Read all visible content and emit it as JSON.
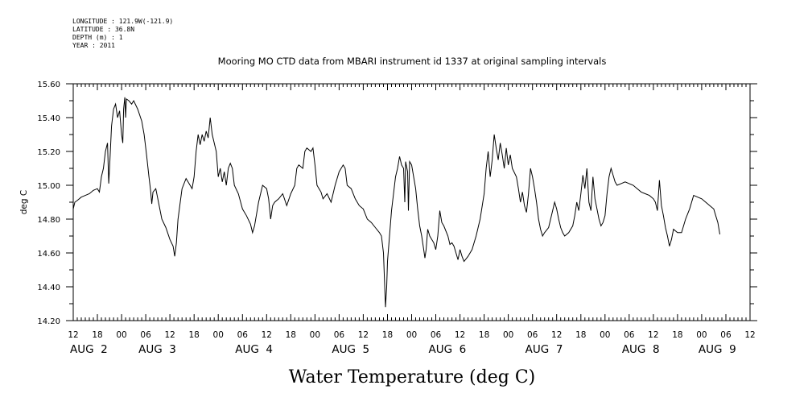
{
  "header": {
    "meta_lines": [
      "LONGITUDE : 121.9W(-121.9)",
      "LATITUDE : 36.8N",
      "DEPTH (m) : 1",
      "YEAR : 2011"
    ]
  },
  "chart_data": {
    "type": "line",
    "title": "Mooring MO CTD data from MBARI instrument id 1337 at original sampling intervals",
    "xlabel": "Water Temperature (deg C)",
    "ylabel": "deg C",
    "ylim": [
      14.2,
      15.6
    ],
    "yticks": [
      "14.20",
      "14.40",
      "14.60",
      "14.80",
      "15.00",
      "15.20",
      "15.40",
      "15.60"
    ],
    "xlim": [
      -12,
      156
    ],
    "x_unit": "hours from 2011-08-02 00:00",
    "xtick_labels": [
      {
        "x": -12,
        "label": "12"
      },
      {
        "x": -6,
        "label": "18"
      },
      {
        "x": 0,
        "label": "00"
      },
      {
        "x": 6,
        "label": "06"
      },
      {
        "x": 12,
        "label": "12"
      },
      {
        "x": 18,
        "label": "18"
      },
      {
        "x": 24,
        "label": "00"
      },
      {
        "x": 30,
        "label": "06"
      },
      {
        "x": 36,
        "label": "12"
      },
      {
        "x": 42,
        "label": "18"
      },
      {
        "x": 48,
        "label": "00"
      },
      {
        "x": 54,
        "label": "06"
      },
      {
        "x": 60,
        "label": "12"
      },
      {
        "x": 66,
        "label": "18"
      },
      {
        "x": 72,
        "label": "00"
      },
      {
        "x": 78,
        "label": "06"
      },
      {
        "x": 84,
        "label": "12"
      },
      {
        "x": 90,
        "label": "18"
      },
      {
        "x": 96,
        "label": "00"
      },
      {
        "x": 102,
        "label": "06"
      },
      {
        "x": 108,
        "label": "12"
      },
      {
        "x": 114,
        "label": "18"
      },
      {
        "x": 120,
        "label": "00"
      },
      {
        "x": 126,
        "label": "06"
      },
      {
        "x": 132,
        "label": "12"
      },
      {
        "x": 138,
        "label": "18"
      },
      {
        "x": 144,
        "label": "00"
      },
      {
        "x": 150,
        "label": "06"
      },
      {
        "x": 156,
        "label": "12"
      }
    ],
    "day_labels": [
      {
        "x": -12,
        "label": "AUG  2"
      },
      {
        "x": 5,
        "label": "AUG  3"
      },
      {
        "x": 29,
        "label": "AUG  4"
      },
      {
        "x": 53,
        "label": "AUG  5"
      },
      {
        "x": 77,
        "label": "AUG  6"
      },
      {
        "x": 101,
        "label": "AUG  7"
      },
      {
        "x": 125,
        "label": "AUG  8"
      },
      {
        "x": 144,
        "label": "AUG  9"
      }
    ],
    "series": [
      {
        "color": "#000000",
        "points": [
          [
            -12,
            14.86
          ],
          [
            -11.6,
            14.9
          ],
          [
            -11,
            14.91
          ],
          [
            -10,
            14.93
          ],
          [
            -9,
            14.94
          ],
          [
            -8,
            14.95
          ],
          [
            -7,
            14.97
          ],
          [
            -6,
            14.98
          ],
          [
            -5.5,
            14.96
          ],
          [
            -5,
            15.05
          ],
          [
            -4.5,
            15.1
          ],
          [
            -4,
            15.2
          ],
          [
            -3.5,
            15.25
          ],
          [
            -3.2,
            15.01
          ],
          [
            -3,
            15.1
          ],
          [
            -2.5,
            15.35
          ],
          [
            -2,
            15.45
          ],
          [
            -1.5,
            15.48
          ],
          [
            -1,
            15.4
          ],
          [
            -0.5,
            15.44
          ],
          [
            0,
            15.3
          ],
          [
            0.3,
            15.25
          ],
          [
            0.5,
            15.45
          ],
          [
            0.8,
            15.52
          ],
          [
            1,
            15.4
          ],
          [
            1.2,
            15.51
          ],
          [
            1.8,
            15.5
          ],
          [
            2.5,
            15.48
          ],
          [
            3,
            15.5
          ],
          [
            4,
            15.45
          ],
          [
            5,
            15.38
          ],
          [
            5.6,
            15.3
          ],
          [
            6.2,
            15.18
          ],
          [
            6.8,
            15.05
          ],
          [
            7.2,
            14.97
          ],
          [
            7.5,
            14.89
          ],
          [
            7.8,
            14.96
          ],
          [
            8.5,
            14.98
          ],
          [
            9,
            14.92
          ],
          [
            9.5,
            14.86
          ],
          [
            10,
            14.8
          ],
          [
            11,
            14.75
          ],
          [
            12,
            14.68
          ],
          [
            12.8,
            14.64
          ],
          [
            13.2,
            14.58
          ],
          [
            13.6,
            14.66
          ],
          [
            14,
            14.8
          ],
          [
            15,
            14.98
          ],
          [
            16,
            15.04
          ],
          [
            17,
            15.0
          ],
          [
            17.5,
            14.98
          ],
          [
            18,
            15.05
          ],
          [
            18.5,
            15.2
          ],
          [
            19,
            15.3
          ],
          [
            19.5,
            15.24
          ],
          [
            20,
            15.3
          ],
          [
            20.5,
            15.26
          ],
          [
            21,
            15.32
          ],
          [
            21.5,
            15.28
          ],
          [
            22,
            15.4
          ],
          [
            22.5,
            15.3
          ],
          [
            23,
            15.25
          ],
          [
            23.5,
            15.2
          ],
          [
            24,
            15.05
          ],
          [
            24.5,
            15.1
          ],
          [
            25,
            15.02
          ],
          [
            25.5,
            15.08
          ],
          [
            26,
            15.0
          ],
          [
            26.5,
            15.1
          ],
          [
            27,
            15.13
          ],
          [
            27.5,
            15.1
          ],
          [
            28,
            15.0
          ],
          [
            29,
            14.95
          ],
          [
            30,
            14.86
          ],
          [
            31,
            14.82
          ],
          [
            32,
            14.77
          ],
          [
            32.5,
            14.72
          ],
          [
            33,
            14.76
          ],
          [
            34,
            14.9
          ],
          [
            35,
            15.0
          ],
          [
            36,
            14.98
          ],
          [
            36.5,
            14.92
          ],
          [
            37,
            14.8
          ],
          [
            37.5,
            14.88
          ],
          [
            38,
            14.9
          ],
          [
            39,
            14.92
          ],
          [
            40,
            14.95
          ],
          [
            41,
            14.88
          ],
          [
            42,
            14.95
          ],
          [
            43,
            15.0
          ],
          [
            43.5,
            15.1
          ],
          [
            44,
            15.12
          ],
          [
            45,
            15.1
          ],
          [
            45.5,
            15.2
          ],
          [
            46,
            15.22
          ],
          [
            47,
            15.2
          ],
          [
            47.5,
            15.22
          ],
          [
            48,
            15.12
          ],
          [
            48.5,
            15.0
          ],
          [
            49,
            14.98
          ],
          [
            49.5,
            14.96
          ],
          [
            50,
            14.92
          ],
          [
            51,
            14.95
          ],
          [
            52,
            14.9
          ],
          [
            53,
            15.0
          ],
          [
            54,
            15.08
          ],
          [
            55,
            15.12
          ],
          [
            55.5,
            15.1
          ],
          [
            56,
            15.0
          ],
          [
            57,
            14.98
          ],
          [
            58,
            14.92
          ],
          [
            59,
            14.88
          ],
          [
            60,
            14.86
          ],
          [
            61,
            14.8
          ],
          [
            62,
            14.78
          ],
          [
            63,
            14.75
          ],
          [
            64,
            14.72
          ],
          [
            64.5,
            14.7
          ],
          [
            65,
            14.6
          ],
          [
            65.5,
            14.28
          ],
          [
            65.8,
            14.4
          ],
          [
            66,
            14.55
          ],
          [
            66.5,
            14.7
          ],
          [
            67,
            14.85
          ],
          [
            67.5,
            14.95
          ],
          [
            68,
            15.05
          ],
          [
            68.5,
            15.1
          ],
          [
            69,
            15.17
          ],
          [
            69.5,
            15.12
          ],
          [
            70,
            15.1
          ],
          [
            70.3,
            14.9
          ],
          [
            70.5,
            15.14
          ],
          [
            71,
            15.08
          ],
          [
            71.2,
            14.85
          ],
          [
            71.5,
            15.14
          ],
          [
            72,
            15.12
          ],
          [
            72.5,
            15.05
          ],
          [
            73,
            14.98
          ],
          [
            73.5,
            14.86
          ],
          [
            74,
            14.76
          ],
          [
            74.5,
            14.7
          ],
          [
            75,
            14.62
          ],
          [
            75.3,
            14.57
          ],
          [
            75.6,
            14.62
          ],
          [
            76,
            14.74
          ],
          [
            76.5,
            14.7
          ],
          [
            77,
            14.68
          ],
          [
            77.5,
            14.66
          ],
          [
            78,
            14.62
          ],
          [
            78.5,
            14.7
          ],
          [
            79,
            14.85
          ],
          [
            79.5,
            14.78
          ],
          [
            80,
            14.76
          ],
          [
            81,
            14.7
          ],
          [
            81.5,
            14.65
          ],
          [
            82,
            14.66
          ],
          [
            82.5,
            14.64
          ],
          [
            83,
            14.6
          ],
          [
            83.5,
            14.56
          ],
          [
            84,
            14.62
          ],
          [
            84.5,
            14.58
          ],
          [
            85,
            14.55
          ],
          [
            86,
            14.58
          ],
          [
            87,
            14.62
          ],
          [
            88,
            14.7
          ],
          [
            89,
            14.8
          ],
          [
            90,
            14.95
          ],
          [
            90.5,
            15.1
          ],
          [
            91,
            15.2
          ],
          [
            91.5,
            15.05
          ],
          [
            92,
            15.15
          ],
          [
            92.5,
            15.3
          ],
          [
            93,
            15.22
          ],
          [
            93.5,
            15.15
          ],
          [
            94,
            15.25
          ],
          [
            94.5,
            15.18
          ],
          [
            95,
            15.1
          ],
          [
            95.5,
            15.22
          ],
          [
            96,
            15.12
          ],
          [
            96.5,
            15.18
          ],
          [
            97,
            15.1
          ],
          [
            98,
            15.05
          ],
          [
            98.5,
            14.98
          ],
          [
            99,
            14.9
          ],
          [
            99.5,
            14.96
          ],
          [
            100,
            14.88
          ],
          [
            100.5,
            14.84
          ],
          [
            101,
            14.95
          ],
          [
            101.5,
            15.1
          ],
          [
            102,
            15.05
          ],
          [
            102.5,
            14.98
          ],
          [
            103,
            14.9
          ],
          [
            103.5,
            14.8
          ],
          [
            104,
            14.74
          ],
          [
            104.5,
            14.7
          ],
          [
            105,
            14.72
          ],
          [
            106,
            14.75
          ],
          [
            106.5,
            14.8
          ],
          [
            107,
            14.85
          ],
          [
            107.5,
            14.9
          ],
          [
            108,
            14.86
          ],
          [
            108.5,
            14.8
          ],
          [
            109,
            14.75
          ],
          [
            109.5,
            14.72
          ],
          [
            110,
            14.7
          ],
          [
            111,
            14.72
          ],
          [
            112,
            14.76
          ],
          [
            112.5,
            14.82
          ],
          [
            113,
            14.9
          ],
          [
            113.5,
            14.85
          ],
          [
            114,
            14.95
          ],
          [
            114.5,
            15.06
          ],
          [
            115,
            14.98
          ],
          [
            115.5,
            15.1
          ],
          [
            116,
            14.9
          ],
          [
            116.5,
            14.85
          ],
          [
            117,
            15.05
          ],
          [
            117.5,
            14.92
          ],
          [
            118,
            14.86
          ],
          [
            118.5,
            14.8
          ],
          [
            119,
            14.76
          ],
          [
            119.5,
            14.78
          ],
          [
            120,
            14.82
          ],
          [
            120.5,
            14.95
          ],
          [
            121,
            15.05
          ],
          [
            121.5,
            15.1
          ],
          [
            122,
            15.06
          ],
          [
            122.5,
            15.02
          ],
          [
            123,
            15.0
          ],
          [
            124,
            15.01
          ],
          [
            125,
            15.02
          ],
          [
            126,
            15.01
          ],
          [
            127,
            15.0
          ],
          [
            128,
            14.98
          ],
          [
            129,
            14.96
          ],
          [
            130,
            14.95
          ],
          [
            131,
            14.94
          ],
          [
            132,
            14.92
          ],
          [
            132.5,
            14.9
          ],
          [
            133,
            14.85
          ],
          [
            133.5,
            15.03
          ],
          [
            134,
            14.88
          ],
          [
            134.5,
            14.82
          ],
          [
            135,
            14.75
          ],
          [
            135.5,
            14.7
          ],
          [
            136,
            14.64
          ],
          [
            136.5,
            14.68
          ],
          [
            137,
            14.74
          ],
          [
            138,
            14.72
          ],
          [
            139,
            14.72
          ],
          [
            140,
            14.8
          ],
          [
            141,
            14.86
          ],
          [
            142,
            14.94
          ],
          [
            143,
            14.93
          ],
          [
            144,
            14.92
          ],
          [
            145,
            14.9
          ],
          [
            146,
            14.88
          ],
          [
            147,
            14.86
          ],
          [
            147.5,
            14.82
          ],
          [
            148,
            14.78
          ],
          [
            148.5,
            14.71
          ]
        ]
      }
    ]
  }
}
